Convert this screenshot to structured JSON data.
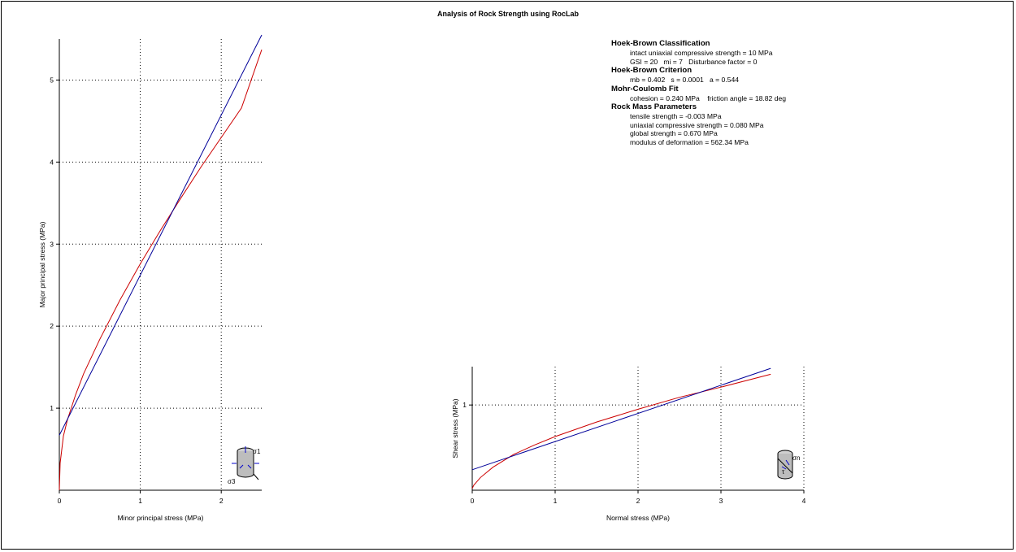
{
  "title": "Analysis of Rock Strength using RocLab",
  "summary": {
    "sections": [
      {
        "heading": "Hoek-Brown Classification",
        "lines": [
          "intact uniaxial compressive strength = 10 MPa",
          "GSI = 20   mi = 7   Disturbance factor = 0"
        ]
      },
      {
        "heading": "Hoek-Brown Criterion",
        "lines": [
          "mb = 0.402   s = 0.0001   a = 0.544"
        ]
      },
      {
        "heading": "Mohr-Coulomb Fit",
        "lines": [
          "cohesion = 0.240 MPa    friction angle = 18.82 deg"
        ]
      },
      {
        "heading": "Rock Mass Parameters",
        "lines": [
          "tensile strength = -0.003 MPa",
          "uniaxial compressive strength = 0.080 MPa",
          "global strength = 0.670 MPa",
          "modulus of deformation = 562.34 MPa"
        ]
      }
    ]
  },
  "colors": {
    "hoek_brown": "#cc0000",
    "mohr_coulomb": "#000099",
    "grid": "#000000",
    "icon": "#0000cc"
  },
  "chart_data": [
    {
      "type": "line",
      "xlabel": "Minor principal stress (MPa)",
      "ylabel": "Major principal stress (MPa)",
      "xlim": [
        0,
        2.5
      ],
      "ylim": [
        0,
        5.5
      ],
      "xticks": [
        0,
        1,
        2
      ],
      "yticks": [
        1,
        2,
        3,
        4,
        5
      ],
      "grid": true,
      "icon": "triaxial-cylinder-icon",
      "icon_labels": [
        "σ1",
        "σ3"
      ],
      "series": [
        {
          "color": "#cc0000",
          "x": [
            0,
            0.01,
            0.05,
            0.1,
            0.2,
            0.3,
            0.5,
            0.75,
            1.0,
            1.25,
            1.5,
            1.75,
            2.0,
            2.25,
            2.5
          ],
          "y": [
            0,
            0.33,
            0.66,
            0.86,
            1.16,
            1.42,
            1.84,
            2.32,
            2.76,
            3.17,
            3.56,
            3.94,
            4.3,
            4.66,
            5.37
          ]
        },
        {
          "color": "#000099",
          "x": [
            0,
            2.5
          ],
          "y": [
            0.67,
            5.55
          ]
        }
      ]
    },
    {
      "type": "line",
      "xlabel": "Normal stress (MPa)",
      "ylabel": "Shear stress (MPa)",
      "xlim": [
        0,
        4
      ],
      "ylim": [
        0,
        1.45
      ],
      "xticks": [
        0,
        1,
        2,
        3,
        4
      ],
      "yticks": [
        1
      ],
      "grid": true,
      "icon": "shear-cylinder-icon",
      "icon_labels": [
        "σn",
        "τ"
      ],
      "series": [
        {
          "color": "#cc0000",
          "x": [
            0,
            0.02,
            0.1,
            0.25,
            0.5,
            0.75,
            1.0,
            1.5,
            2.0,
            2.5,
            3.0,
            3.6
          ],
          "y": [
            0.02,
            0.06,
            0.15,
            0.27,
            0.42,
            0.53,
            0.63,
            0.8,
            0.95,
            1.09,
            1.21,
            1.36
          ]
        },
        {
          "color": "#000099",
          "x": [
            0,
            3.6
          ],
          "y": [
            0.24,
            1.43
          ]
        }
      ]
    }
  ]
}
